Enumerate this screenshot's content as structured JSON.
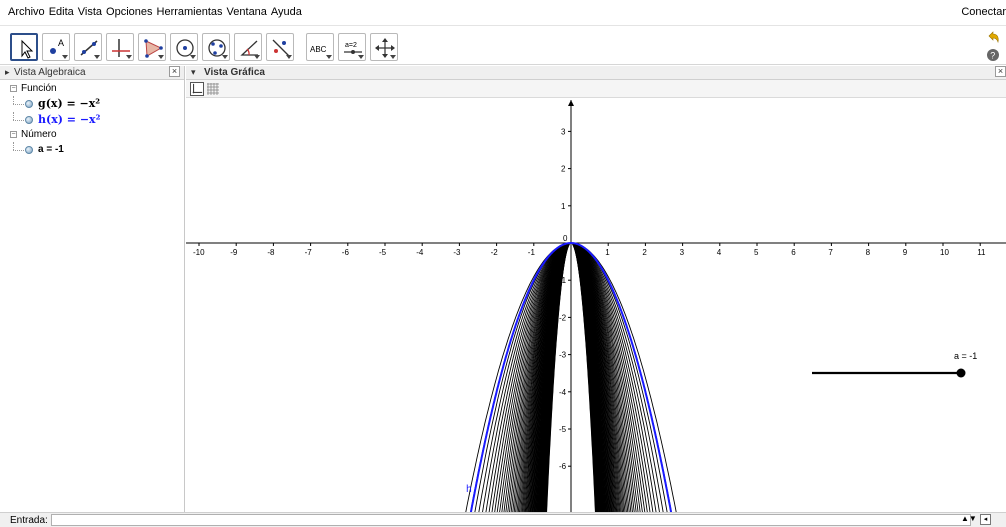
{
  "menu": {
    "items": [
      "Archivo",
      "Edita",
      "Vista",
      "Opciones",
      "Herramientas",
      "Ventana",
      "Ayuda"
    ],
    "connect": "Conectar"
  },
  "toolbar": {
    "tools": [
      {
        "icon": "move-pointer-icon"
      },
      {
        "icon": "point-icon",
        "sub": "A"
      },
      {
        "icon": "line-icon"
      },
      {
        "icon": "perpendicular-line-icon"
      },
      {
        "icon": "polygon-icon"
      },
      {
        "icon": "circle-center-point-icon"
      },
      {
        "icon": "circle-three-points-icon"
      },
      {
        "icon": "angle-icon"
      },
      {
        "icon": "reflect-icon"
      },
      {
        "icon": "text-icon",
        "label": "ABC"
      },
      {
        "icon": "slider-icon",
        "label": "a=2"
      },
      {
        "icon": "move-graphics-view-icon"
      }
    ]
  },
  "algebra": {
    "title": "Vista Algebraica",
    "categories": [
      {
        "name": "Función",
        "items": [
          {
            "text": "g(x) = −x²",
            "color": "#000000"
          },
          {
            "text": "h(x) = −x²",
            "color": "#1a1aff"
          }
        ]
      },
      {
        "name": "Número",
        "items": [
          {
            "text": "a = -1",
            "color": "#000000"
          }
        ]
      }
    ]
  },
  "graphics": {
    "title": "Vista Gráfica",
    "x_ticks": [
      "-10",
      "-9",
      "-8",
      "-7",
      "-6",
      "-5",
      "-4",
      "-3",
      "-2",
      "-1",
      "1",
      "2",
      "3",
      "4",
      "5",
      "6",
      "7",
      "8",
      "9",
      "10",
      "11"
    ],
    "y_ticks_pos": [
      "3",
      "2",
      "1"
    ],
    "y_ticks_neg": [
      "-1",
      "-2",
      "-3",
      "-4",
      "-5",
      "-6"
    ],
    "origin_label": "0",
    "curve_label": "h",
    "slider_label": "a = -1",
    "slider_value": -1
  },
  "input": {
    "label": "Entrada:",
    "value": ""
  }
}
